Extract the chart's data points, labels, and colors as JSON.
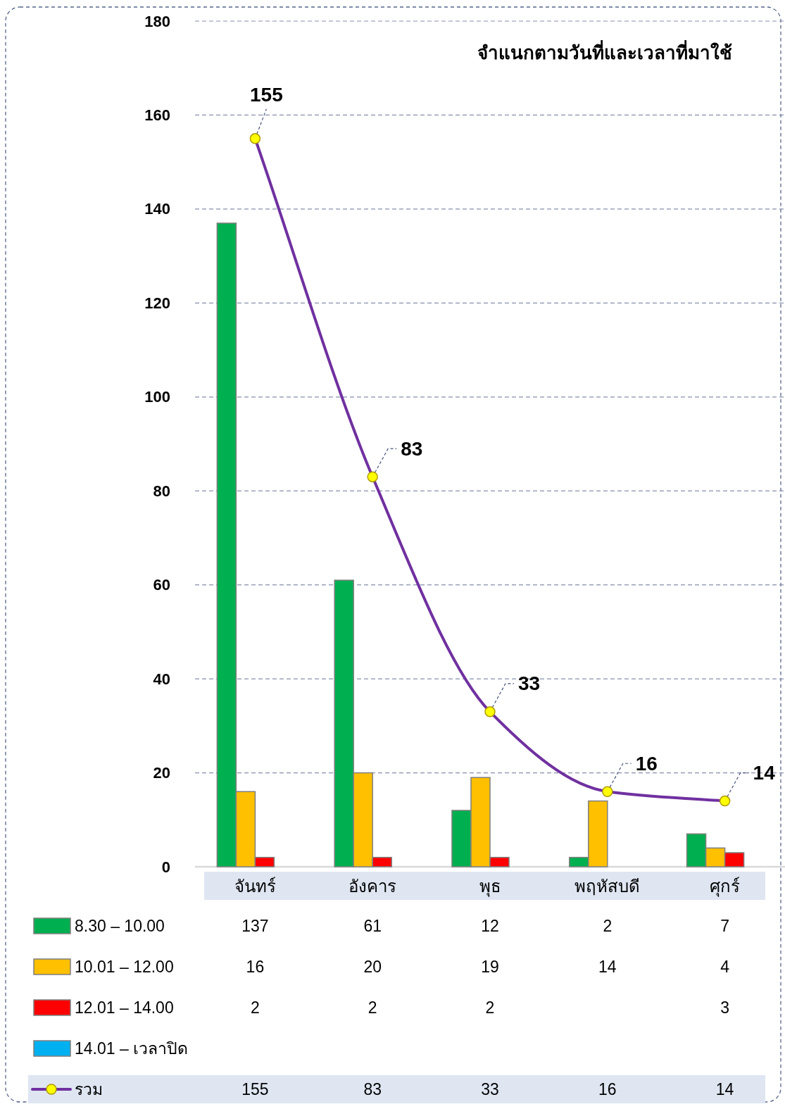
{
  "chart_data": {
    "type": "bar",
    "title": "จำแนกตามวันที่และเวลาที่มาใช้",
    "categories": [
      "จันทร์",
      "อังคาร",
      "พุธ",
      "พฤหัสบดี",
      "ศุกร์"
    ],
    "series": [
      {
        "name": "8.30 – 10.00",
        "color": "#00b050",
        "values": [
          137,
          61,
          12,
          2,
          7
        ]
      },
      {
        "name": "10.01 – 12.00",
        "color": "#ffc000",
        "values": [
          16,
          20,
          19,
          14,
          4
        ]
      },
      {
        "name": "12.01 – 14.00",
        "color": "#ff0000",
        "values": [
          2,
          2,
          2,
          null,
          3
        ]
      },
      {
        "name": "14.01 – เวลาปิด",
        "color": "#00b0f0",
        "values": [
          null,
          null,
          null,
          null,
          null
        ]
      },
      {
        "name": "รวม",
        "type": "line",
        "color": "#7030a0",
        "marker": "circle",
        "values": [
          155,
          83,
          33,
          16,
          14
        ]
      }
    ],
    "annotations": [
      {
        "text": "155",
        "x": "จันทร์",
        "y": 155
      },
      {
        "text": "83",
        "x": "อังคาร",
        "y": 83
      },
      {
        "text": "33",
        "x": "พุธ",
        "y": 33
      },
      {
        "text": "16",
        "x": "พฤหัสบดี",
        "y": 16
      },
      {
        "text": "14",
        "x": "ศุกร์",
        "y": 14
      }
    ],
    "ylim": [
      0,
      180
    ],
    "yticks": [
      0,
      20,
      40,
      60,
      80,
      100,
      120,
      140,
      160,
      180
    ],
    "grid": "y",
    "legend": "bottom",
    "data_labels": true
  }
}
